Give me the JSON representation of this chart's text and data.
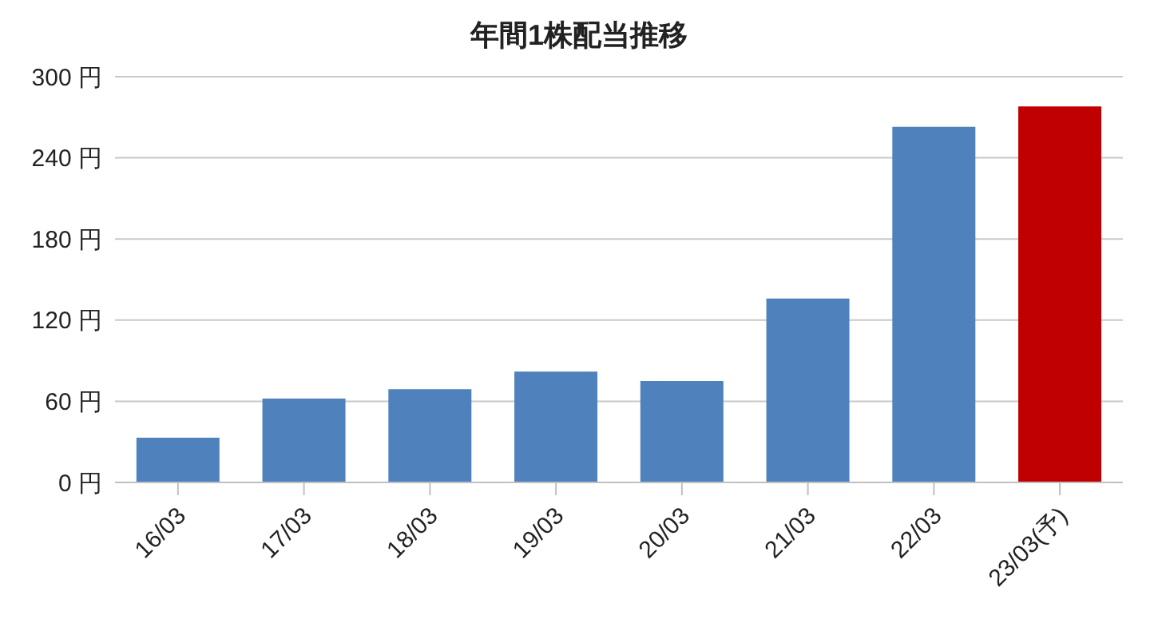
{
  "chart_data": {
    "type": "bar",
    "title": "年間1株配当推移",
    "categories": [
      "16/03",
      "17/03",
      "18/03",
      "19/03",
      "20/03",
      "21/03",
      "22/03",
      "23/03(予)"
    ],
    "values": [
      33,
      62,
      69,
      82,
      75,
      136,
      263,
      278
    ],
    "colors": [
      "#4f81bd",
      "#4f81bd",
      "#4f81bd",
      "#4f81bd",
      "#4f81bd",
      "#4f81bd",
      "#4f81bd",
      "#c00000"
    ],
    "ylim": [
      0,
      300
    ],
    "yticks": [
      {
        "value": 0,
        "label": "0 円"
      },
      {
        "value": 60,
        "label": "60 円"
      },
      {
        "value": 120,
        "label": "120 円"
      },
      {
        "value": 180,
        "label": "180 円"
      },
      {
        "value": 240,
        "label": "240 円"
      },
      {
        "value": 300,
        "label": "300 円"
      }
    ],
    "grid": "y"
  }
}
